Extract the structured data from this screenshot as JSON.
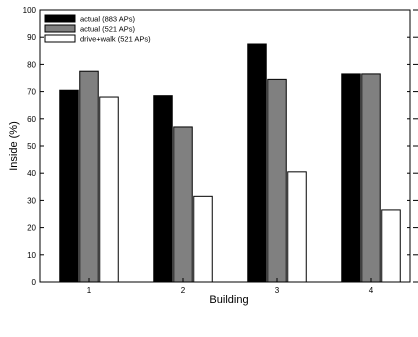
{
  "chart_data": {
    "type": "bar",
    "categories": [
      "1",
      "2",
      "3",
      "4"
    ],
    "series": [
      {
        "name": "actual (883 APs)",
        "values": [
          70.5,
          68.5,
          87.5,
          76.5
        ],
        "color": "#000000"
      },
      {
        "name": "actual (521 APs)",
        "values": [
          77.5,
          57.0,
          74.5,
          76.5
        ],
        "color": "#808080"
      },
      {
        "name": "drive+walk (521 APs)",
        "values": [
          68.0,
          31.5,
          40.5,
          26.5
        ],
        "color": "#ffffff"
      }
    ],
    "xlabel": "Building",
    "ylabel": "Inside (%)",
    "ylim": [
      0,
      100
    ],
    "yticks": [
      "0",
      "10",
      "20",
      "30",
      "40",
      "50",
      "60",
      "70",
      "80",
      "90",
      "100"
    ],
    "grid": false,
    "legend_position": "top-left"
  }
}
